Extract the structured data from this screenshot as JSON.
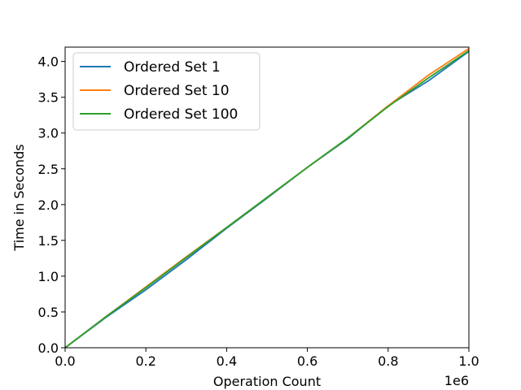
{
  "chart_data": {
    "type": "line",
    "title": "",
    "xlabel": "Operation Count",
    "ylabel": "Time in Seconds",
    "x_offset_label": "1e6",
    "xlim": [
      0,
      1000000
    ],
    "ylim": [
      0,
      4.2
    ],
    "xticks": [
      0,
      200000,
      400000,
      600000,
      800000,
      1000000
    ],
    "xtick_labels": [
      "0.0",
      "0.2",
      "0.4",
      "0.6",
      "0.8",
      "1.0"
    ],
    "yticks": [
      0,
      0.5,
      1.0,
      1.5,
      2.0,
      2.5,
      3.0,
      3.5,
      4.0
    ],
    "ytick_labels": [
      "0.0",
      "0.5",
      "1.0",
      "1.5",
      "2.0",
      "2.5",
      "3.0",
      "3.5",
      "4.0"
    ],
    "grid": false,
    "legend_position": "top-left",
    "x": [
      0,
      100000,
      200000,
      300000,
      400000,
      500000,
      600000,
      700000,
      800000,
      900000,
      1000000
    ],
    "series": [
      {
        "name": "Ordered Set 1",
        "color": "#1f77b4",
        "values": [
          0.0,
          0.42,
          0.81,
          1.23,
          1.67,
          2.09,
          2.52,
          2.92,
          3.38,
          3.73,
          4.14
        ]
      },
      {
        "name": "Ordered Set 10",
        "color": "#ff7f0e",
        "values": [
          0.0,
          0.43,
          0.85,
          1.27,
          1.68,
          2.1,
          2.52,
          2.93,
          3.38,
          3.81,
          4.18
        ]
      },
      {
        "name": "Ordered Set 100",
        "color": "#2ca02c",
        "values": [
          0.0,
          0.43,
          0.84,
          1.26,
          1.68,
          2.1,
          2.52,
          2.93,
          3.37,
          3.77,
          4.15
        ]
      }
    ]
  }
}
